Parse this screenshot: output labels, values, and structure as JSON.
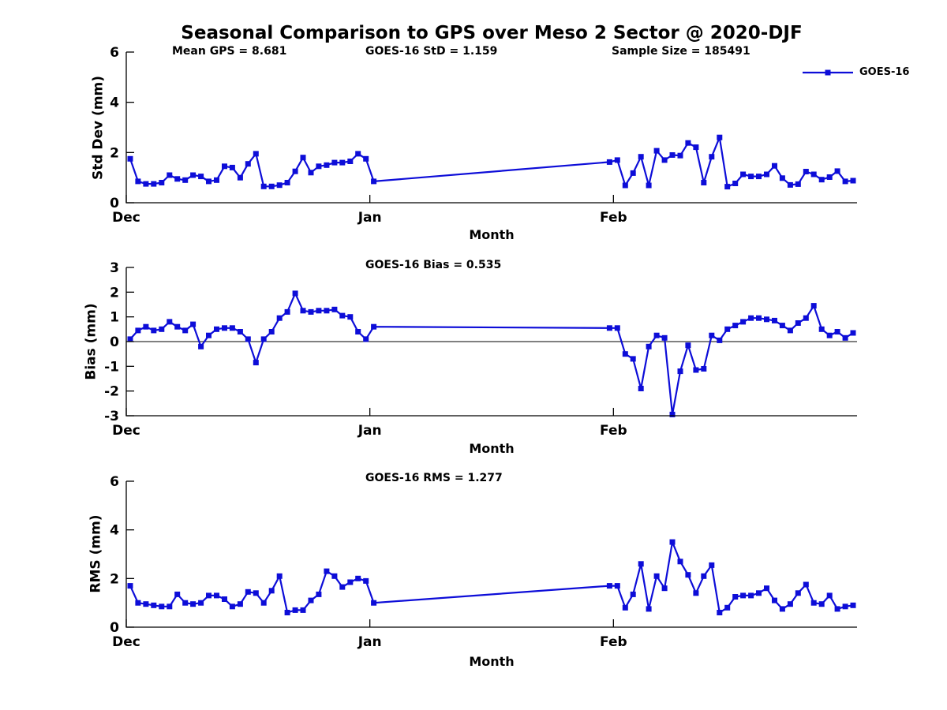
{
  "title": "Seasonal Comparison to GPS over Meso 2 Sector @ 2020-DJF",
  "legend": {
    "label": "GOES-16",
    "marker": "square"
  },
  "colors": {
    "line": "#0d0dd8",
    "axis": "#000000",
    "background": "#ffffff"
  },
  "chart_data": [
    {
      "type": "line",
      "ylabel": "Std Dev (mm)",
      "xlabel": "Month",
      "annotations": [
        {
          "text": "Mean GPS = 8.681"
        },
        {
          "text": "GOES-16 StD = 1.159"
        },
        {
          "text": "Sample Size = 185491"
        }
      ],
      "ylim": [
        0,
        6
      ],
      "yticks": [
        0,
        2,
        4,
        6
      ],
      "xticks": [
        {
          "day": 0,
          "label": "Dec"
        },
        {
          "day": 31,
          "label": "Jan"
        },
        {
          "day": 62,
          "label": "Feb"
        }
      ],
      "x_range_days": [
        0,
        93
      ],
      "zero_line": false,
      "legend_position": "top-right",
      "grid": false,
      "series": [
        {
          "name": "GOES-16",
          "points": [
            [
              0,
              1.75
            ],
            [
              1,
              0.85
            ],
            [
              2,
              0.75
            ],
            [
              3,
              0.75
            ],
            [
              4,
              0.8
            ],
            [
              5,
              1.1
            ],
            [
              6,
              0.95
            ],
            [
              7,
              0.9
            ],
            [
              8,
              1.1
            ],
            [
              9,
              1.05
            ],
            [
              10,
              0.85
            ],
            [
              11,
              0.9
            ],
            [
              12,
              1.45
            ],
            [
              13,
              1.4
            ],
            [
              14,
              1.0
            ],
            [
              15,
              1.55
            ],
            [
              16,
              1.95
            ],
            [
              17,
              0.65
            ],
            [
              18,
              0.65
            ],
            [
              19,
              0.7
            ],
            [
              20,
              0.8
            ],
            [
              21,
              1.25
            ],
            [
              22,
              1.8
            ],
            [
              23,
              1.2
            ],
            [
              24,
              1.45
            ],
            [
              25,
              1.5
            ],
            [
              26,
              1.6
            ],
            [
              27,
              1.6
            ],
            [
              28,
              1.65
            ],
            [
              29,
              1.95
            ],
            [
              30,
              1.75
            ],
            [
              31,
              0.85
            ],
            [
              61,
              1.62
            ],
            [
              62,
              1.7
            ],
            [
              63,
              0.69
            ],
            [
              64,
              1.18
            ],
            [
              65,
              1.83
            ],
            [
              66,
              0.69
            ],
            [
              67,
              2.07
            ],
            [
              68,
              1.7
            ],
            [
              69,
              1.9
            ],
            [
              70,
              1.88
            ],
            [
              71,
              2.38
            ],
            [
              72,
              2.21
            ],
            [
              73,
              0.8
            ],
            [
              74,
              1.83
            ],
            [
              75,
              2.6
            ],
            [
              76,
              0.64
            ],
            [
              77,
              0.77
            ],
            [
              78,
              1.13
            ],
            [
              79,
              1.05
            ],
            [
              80,
              1.05
            ],
            [
              81,
              1.13
            ],
            [
              82,
              1.47
            ],
            [
              83,
              0.98
            ],
            [
              84,
              0.71
            ],
            [
              85,
              0.74
            ],
            [
              86,
              1.24
            ],
            [
              87,
              1.13
            ],
            [
              88,
              0.92
            ],
            [
              89,
              1.02
            ],
            [
              90,
              1.26
            ],
            [
              91,
              0.85
            ],
            [
              92,
              0.88
            ]
          ]
        }
      ]
    },
    {
      "type": "line",
      "title": "GOES-16 Bias = 0.535",
      "ylabel": "Bias (mm)",
      "xlabel": "Month",
      "ylim": [
        -3,
        3
      ],
      "yticks": [
        -3,
        -2,
        -1,
        0,
        1,
        2,
        3
      ],
      "xticks": [
        {
          "day": 0,
          "label": "Dec"
        },
        {
          "day": 31,
          "label": "Jan"
        },
        {
          "day": 62,
          "label": "Feb"
        }
      ],
      "x_range_days": [
        0,
        93
      ],
      "zero_line": true,
      "grid": false,
      "series": [
        {
          "name": "GOES-16",
          "points": [
            [
              0,
              0.1
            ],
            [
              1,
              0.45
            ],
            [
              2,
              0.6
            ],
            [
              3,
              0.45
            ],
            [
              4,
              0.5
            ],
            [
              5,
              0.8
            ],
            [
              6,
              0.6
            ],
            [
              7,
              0.45
            ],
            [
              8,
              0.7
            ],
            [
              9,
              -0.2
            ],
            [
              10,
              0.25
            ],
            [
              11,
              0.5
            ],
            [
              12,
              0.55
            ],
            [
              13,
              0.55
            ],
            [
              14,
              0.4
            ],
            [
              15,
              0.1
            ],
            [
              16,
              -0.85
            ],
            [
              17,
              0.1
            ],
            [
              18,
              0.4
            ],
            [
              19,
              0.95
            ],
            [
              20,
              1.2
            ],
            [
              21,
              1.95
            ],
            [
              22,
              1.25
            ],
            [
              23,
              1.2
            ],
            [
              24,
              1.25
            ],
            [
              25,
              1.25
            ],
            [
              26,
              1.3
            ],
            [
              27,
              1.05
            ],
            [
              28,
              1.0
            ],
            [
              29,
              0.4
            ],
            [
              30,
              0.1
            ],
            [
              31,
              0.6
            ],
            [
              61,
              0.55
            ],
            [
              62,
              0.55
            ],
            [
              63,
              -0.5
            ],
            [
              64,
              -0.7
            ],
            [
              65,
              -1.9
            ],
            [
              66,
              -0.2
            ],
            [
              67,
              0.25
            ],
            [
              68,
              0.15
            ],
            [
              69,
              -2.95
            ],
            [
              70,
              -1.2
            ],
            [
              71,
              -0.15
            ],
            [
              72,
              -1.15
            ],
            [
              73,
              -1.1
            ],
            [
              74,
              0.25
            ],
            [
              75,
              0.05
            ],
            [
              76,
              0.5
            ],
            [
              77,
              0.65
            ],
            [
              78,
              0.8
            ],
            [
              79,
              0.95
            ],
            [
              80,
              0.95
            ],
            [
              81,
              0.9
            ],
            [
              82,
              0.85
            ],
            [
              83,
              0.65
            ],
            [
              84,
              0.45
            ],
            [
              85,
              0.75
            ],
            [
              86,
              0.95
            ],
            [
              87,
              1.45
            ],
            [
              88,
              0.5
            ],
            [
              89,
              0.25
            ],
            [
              90,
              0.4
            ],
            [
              91,
              0.15
            ],
            [
              92,
              0.35
            ]
          ]
        }
      ]
    },
    {
      "type": "line",
      "title": "GOES-16 RMS = 1.277",
      "ylabel": "RMS (mm)",
      "xlabel": "Month",
      "ylim": [
        0,
        6
      ],
      "yticks": [
        0,
        2,
        4,
        6
      ],
      "xticks": [
        {
          "day": 0,
          "label": "Dec"
        },
        {
          "day": 31,
          "label": "Jan"
        },
        {
          "day": 62,
          "label": "Feb"
        }
      ],
      "x_range_days": [
        0,
        93
      ],
      "zero_line": false,
      "grid": false,
      "series": [
        {
          "name": "GOES-16",
          "points": [
            [
              0,
              1.7
            ],
            [
              1,
              1.0
            ],
            [
              2,
              0.95
            ],
            [
              3,
              0.9
            ],
            [
              4,
              0.85
            ],
            [
              5,
              0.85
            ],
            [
              6,
              1.35
            ],
            [
              7,
              1.0
            ],
            [
              8,
              0.95
            ],
            [
              9,
              1.0
            ],
            [
              10,
              1.3
            ],
            [
              11,
              1.3
            ],
            [
              12,
              1.15
            ],
            [
              13,
              0.85
            ],
            [
              14,
              0.95
            ],
            [
              15,
              1.45
            ],
            [
              16,
              1.4
            ],
            [
              17,
              1.0
            ],
            [
              18,
              1.5
            ],
            [
              19,
              2.1
            ],
            [
              20,
              0.6
            ],
            [
              21,
              0.7
            ],
            [
              22,
              0.7
            ],
            [
              23,
              1.1
            ],
            [
              24,
              1.35
            ],
            [
              25,
              2.3
            ],
            [
              26,
              2.1
            ],
            [
              27,
              1.65
            ],
            [
              28,
              1.85
            ],
            [
              29,
              2.0
            ],
            [
              30,
              1.9
            ],
            [
              31,
              1.0
            ],
            [
              61,
              1.7
            ],
            [
              62,
              1.7
            ],
            [
              63,
              0.8
            ],
            [
              64,
              1.35
            ],
            [
              65,
              2.6
            ],
            [
              66,
              0.75
            ],
            [
              67,
              2.1
            ],
            [
              68,
              1.6
            ],
            [
              69,
              3.5
            ],
            [
              70,
              2.7
            ],
            [
              71,
              2.15
            ],
            [
              72,
              1.4
            ],
            [
              73,
              2.1
            ],
            [
              74,
              2.55
            ],
            [
              75,
              0.6
            ],
            [
              76,
              0.8
            ],
            [
              77,
              1.25
            ],
            [
              78,
              1.3
            ],
            [
              79,
              1.3
            ],
            [
              80,
              1.4
            ],
            [
              81,
              1.6
            ],
            [
              82,
              1.1
            ],
            [
              83,
              0.75
            ],
            [
              84,
              0.95
            ],
            [
              85,
              1.4
            ],
            [
              86,
              1.75
            ],
            [
              87,
              1.0
            ],
            [
              88,
              0.95
            ],
            [
              89,
              1.3
            ],
            [
              90,
              0.75
            ],
            [
              91,
              0.85
            ],
            [
              92,
              0.9
            ]
          ]
        }
      ]
    }
  ]
}
